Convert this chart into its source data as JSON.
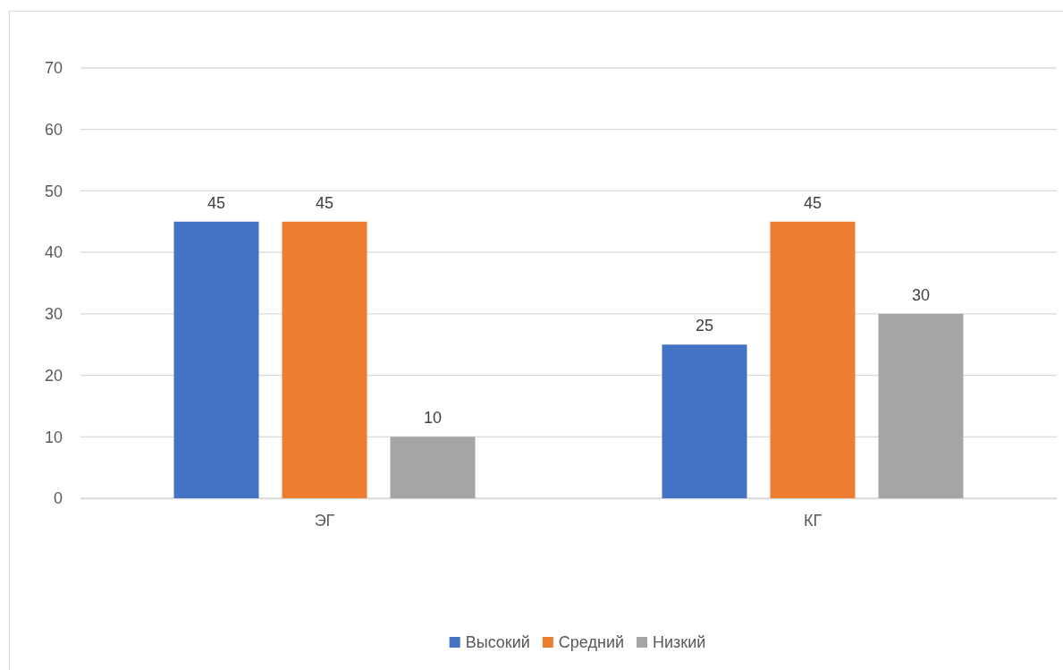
{
  "chart_data": {
    "type": "bar",
    "categories": [
      "ЭГ",
      "КГ"
    ],
    "series": [
      {
        "name": "Высокий",
        "color": "#4472c4",
        "values": [
          45,
          25
        ]
      },
      {
        "name": "Средний",
        "color": "#ed7d31",
        "values": [
          45,
          45
        ]
      },
      {
        "name": "Низкий",
        "color": "#a5a5a5",
        "values": [
          10,
          30
        ]
      }
    ],
    "ylim": [
      0,
      70
    ],
    "yticks": [
      0,
      10,
      20,
      30,
      40,
      50,
      60,
      70
    ],
    "grid": "y",
    "legend": "bottom",
    "data_labels": true
  }
}
